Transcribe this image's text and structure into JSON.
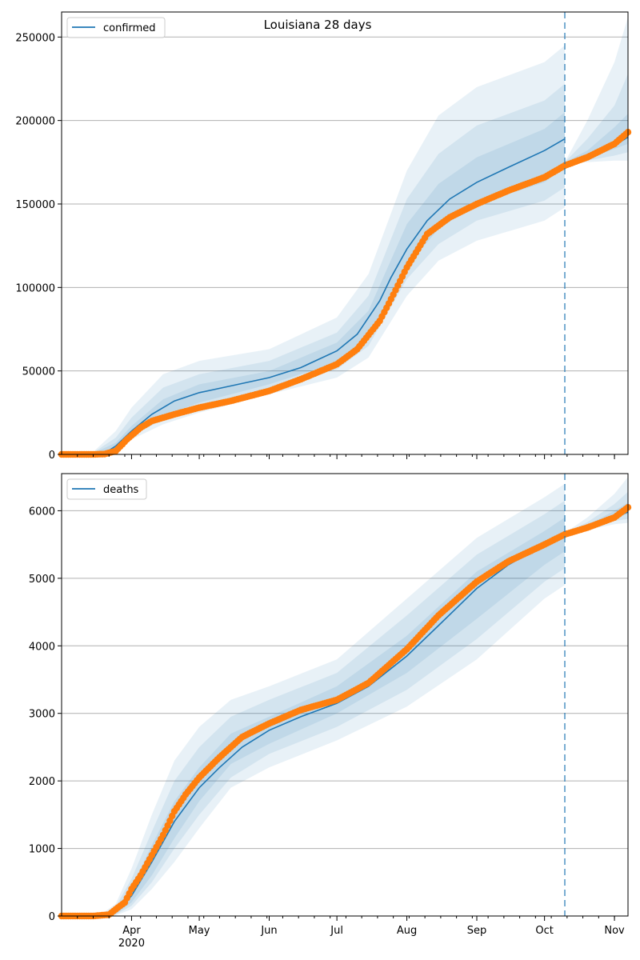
{
  "figure": {
    "title": "Louisiana 28 days"
  },
  "chart_data": [
    {
      "type": "line",
      "legend": [
        "confirmed"
      ],
      "legend_placement": "top-left",
      "title": "Louisiana 28 days",
      "grid": "horizontal",
      "xlim": [
        "2020-03-01",
        "2020-11-07"
      ],
      "ylim": [
        0,
        265000
      ],
      "yticks": [
        0,
        50000,
        100000,
        150000,
        200000,
        250000
      ],
      "ytick_labels": [
        "0",
        "50000",
        "100000",
        "150000",
        "200000",
        "250000"
      ],
      "forecast_start": "2020-10-10",
      "model_median": {
        "x": [
          "2020-03-01",
          "2020-03-10",
          "2020-03-15",
          "2020-03-20",
          "2020-03-25",
          "2020-04-01",
          "2020-04-10",
          "2020-04-20",
          "2020-05-01",
          "2020-05-15",
          "2020-06-01",
          "2020-06-15",
          "2020-07-01",
          "2020-07-10",
          "2020-07-20",
          "2020-07-25",
          "2020-08-01",
          "2020-08-10",
          "2020-08-20",
          "2020-09-01",
          "2020-09-15",
          "2020-10-01",
          "2020-10-10"
        ],
        "y": [
          0,
          0,
          0,
          600,
          5000,
          14000,
          24000,
          32000,
          37000,
          41000,
          46000,
          52000,
          62000,
          72000,
          92000,
          106000,
          123000,
          140000,
          153000,
          163000,
          172000,
          182000,
          189000
        ]
      },
      "observed": {
        "x": [
          "2020-03-01",
          "2020-03-10",
          "2020-03-15",
          "2020-03-20",
          "2020-03-25",
          "2020-03-30",
          "2020-04-05",
          "2020-04-10",
          "2020-04-20",
          "2020-05-01",
          "2020-05-15",
          "2020-06-01",
          "2020-06-15",
          "2020-07-01",
          "2020-07-10",
          "2020-07-20",
          "2020-07-25",
          "2020-08-01",
          "2020-08-10",
          "2020-08-20",
          "2020-09-01",
          "2020-09-15",
          "2020-10-01",
          "2020-10-10",
          "2020-10-20",
          "2020-11-01",
          "2020-11-07"
        ],
        "y": [
          0,
          0,
          0,
          200,
          2000,
          9000,
          16000,
          20000,
          24000,
          28000,
          32000,
          38000,
          45000,
          54000,
          63000,
          80000,
          93000,
          112000,
          132000,
          142000,
          150000,
          158000,
          166000,
          173000,
          178000,
          186000,
          193000
        ]
      },
      "bands": [
        {
          "x": [
            "2020-03-01",
            "2020-03-15",
            "2020-03-25",
            "2020-04-01",
            "2020-04-15",
            "2020-05-01",
            "2020-06-01",
            "2020-07-01",
            "2020-07-15",
            "2020-08-01",
            "2020-08-15",
            "2020-09-01",
            "2020-10-01",
            "2020-10-10"
          ],
          "lower": [
            0,
            0,
            1000,
            9000,
            18000,
            25000,
            36000,
            46000,
            58000,
            95000,
            116000,
            128000,
            140000,
            148000
          ],
          "upper": [
            0,
            1500,
            14000,
            28000,
            48000,
            56000,
            63000,
            82000,
            108000,
            170000,
            203000,
            220000,
            235000,
            245000
          ]
        },
        {
          "x": [
            "2020-03-01",
            "2020-03-15",
            "2020-03-25",
            "2020-04-01",
            "2020-04-15",
            "2020-05-01",
            "2020-06-01",
            "2020-07-01",
            "2020-07-15",
            "2020-08-01",
            "2020-08-15",
            "2020-09-01",
            "2020-10-01",
            "2020-10-10"
          ],
          "lower": [
            0,
            0,
            2000,
            11000,
            21000,
            28000,
            39000,
            51000,
            65000,
            105000,
            126000,
            140000,
            152000,
            160000
          ],
          "upper": [
            0,
            1000,
            10000,
            22000,
            40000,
            48000,
            56000,
            73000,
            95000,
            153000,
            180000,
            197000,
            212000,
            222000
          ]
        },
        {
          "x": [
            "2020-03-01",
            "2020-03-15",
            "2020-03-25",
            "2020-04-01",
            "2020-04-15",
            "2020-05-01",
            "2020-06-01",
            "2020-07-01",
            "2020-07-15",
            "2020-08-01",
            "2020-08-15",
            "2020-09-01",
            "2020-10-01",
            "2020-10-10"
          ],
          "lower": [
            0,
            0,
            3000,
            12500,
            23000,
            31000,
            42000,
            55000,
            70000,
            113000,
            135000,
            150000,
            163000,
            172000
          ],
          "upper": [
            0,
            600,
            7000,
            17000,
            33000,
            42000,
            50000,
            67000,
            86000,
            138000,
            162000,
            178000,
            195000,
            205000
          ]
        },
        {
          "x": [
            "2020-10-10",
            "2020-10-20",
            "2020-11-01",
            "2020-11-07"
          ],
          "lower": [
            174000,
            175000,
            176000,
            176000
          ],
          "upper": [
            175000,
            200000,
            235000,
            262000
          ]
        },
        {
          "x": [
            "2020-10-10",
            "2020-10-20",
            "2020-11-01",
            "2020-11-07"
          ],
          "lower": [
            174000,
            176000,
            179000,
            181000
          ],
          "upper": [
            175000,
            189000,
            209000,
            228000
          ]
        },
        {
          "x": [
            "2020-10-10",
            "2020-10-20",
            "2020-11-01",
            "2020-11-07"
          ],
          "lower": [
            174000,
            177000,
            183000,
            186000
          ],
          "upper": [
            175000,
            182000,
            196000,
            204000
          ]
        }
      ],
      "forecast_median": {
        "x": [
          "2020-10-10",
          "2020-10-20",
          "2020-11-01",
          "2020-11-07"
        ],
        "y": [
          174000,
          178000,
          185000,
          190000
        ]
      }
    },
    {
      "type": "line",
      "legend": [
        "deaths"
      ],
      "legend_placement": "top-left",
      "grid": "horizontal",
      "xlim": [
        "2020-03-01",
        "2020-11-07"
      ],
      "ylim": [
        0,
        6550
      ],
      "yticks": [
        0,
        1000,
        2000,
        3000,
        4000,
        5000,
        6000
      ],
      "ytick_labels": [
        "0",
        "1000",
        "2000",
        "3000",
        "4000",
        "5000",
        "6000"
      ],
      "xticks": [
        "2020-04-01",
        "2020-05-01",
        "2020-06-01",
        "2020-07-01",
        "2020-08-01",
        "2020-09-01",
        "2020-10-01",
        "2020-11-01"
      ],
      "xtick_labels": [
        "Apr",
        "May",
        "Jun",
        "Jul",
        "Aug",
        "Sep",
        "Oct",
        "Nov"
      ],
      "xtick_year_label": "2020",
      "forecast_start": "2020-10-10",
      "model_median": {
        "x": [
          "2020-03-01",
          "2020-03-15",
          "2020-03-22",
          "2020-03-25",
          "2020-04-01",
          "2020-04-10",
          "2020-04-20",
          "2020-05-01",
          "2020-05-10",
          "2020-05-20",
          "2020-06-01",
          "2020-06-15",
          "2020-07-01",
          "2020-07-15",
          "2020-08-01",
          "2020-08-15",
          "2020-09-01",
          "2020-09-15",
          "2020-10-01",
          "2020-10-10"
        ],
        "y": [
          0,
          0,
          20,
          60,
          300,
          800,
          1400,
          1900,
          2200,
          2500,
          2750,
          2950,
          3150,
          3400,
          3850,
          4300,
          4850,
          5200,
          5500,
          5650
        ]
      },
      "observed": {
        "x": [
          "2020-03-01",
          "2020-03-15",
          "2020-03-22",
          "2020-03-25",
          "2020-03-29",
          "2020-04-01",
          "2020-04-05",
          "2020-04-10",
          "2020-04-15",
          "2020-04-20",
          "2020-04-25",
          "2020-05-01",
          "2020-05-10",
          "2020-05-20",
          "2020-06-01",
          "2020-06-15",
          "2020-07-01",
          "2020-07-15",
          "2020-08-01",
          "2020-08-15",
          "2020-09-01",
          "2020-09-15",
          "2020-10-01",
          "2020-10-10",
          "2020-10-20",
          "2020-11-01",
          "2020-11-07"
        ],
        "y": [
          0,
          0,
          20,
          100,
          200,
          400,
          600,
          900,
          1200,
          1550,
          1800,
          2050,
          2350,
          2650,
          2850,
          3050,
          3200,
          3450,
          3950,
          4450,
          4950,
          5250,
          5500,
          5650,
          5750,
          5900,
          6050
        ]
      },
      "bands": [
        {
          "x": [
            "2020-03-01",
            "2020-03-20",
            "2020-03-25",
            "2020-04-01",
            "2020-04-10",
            "2020-04-20",
            "2020-05-01",
            "2020-05-15",
            "2020-06-01",
            "2020-07-01",
            "2020-08-01",
            "2020-09-01",
            "2020-10-01",
            "2020-10-10"
          ],
          "lower": [
            0,
            0,
            10,
            100,
            400,
            800,
            1300,
            1900,
            2200,
            2600,
            3100,
            3800,
            4700,
            4900
          ],
          "upper": [
            0,
            60,
            180,
            700,
            1500,
            2300,
            2800,
            3200,
            3400,
            3800,
            4700,
            5600,
            6200,
            6400
          ]
        },
        {
          "x": [
            "2020-03-01",
            "2020-03-20",
            "2020-03-25",
            "2020-04-01",
            "2020-04-10",
            "2020-04-20",
            "2020-05-01",
            "2020-05-15",
            "2020-06-01",
            "2020-07-01",
            "2020-08-01",
            "2020-09-01",
            "2020-10-01",
            "2020-10-10"
          ],
          "lower": [
            0,
            0,
            20,
            150,
            500,
            1000,
            1500,
            2050,
            2400,
            2800,
            3350,
            4100,
            4950,
            5150
          ],
          "upper": [
            0,
            40,
            140,
            550,
            1250,
            2000,
            2500,
            2950,
            3200,
            3600,
            4450,
            5350,
            5950,
            6150
          ]
        },
        {
          "x": [
            "2020-03-01",
            "2020-03-20",
            "2020-03-25",
            "2020-04-01",
            "2020-04-10",
            "2020-04-20",
            "2020-05-01",
            "2020-05-15",
            "2020-06-01",
            "2020-07-01",
            "2020-08-01",
            "2020-09-01",
            "2020-10-01",
            "2020-10-10"
          ],
          "lower": [
            0,
            0,
            30,
            200,
            600,
            1150,
            1700,
            2250,
            2550,
            3000,
            3600,
            4400,
            5200,
            5400
          ],
          "upper": [
            0,
            30,
            110,
            420,
            1050,
            1700,
            2200,
            2700,
            2950,
            3400,
            4150,
            5100,
            5700,
            5900
          ]
        },
        {
          "x": [
            "2020-10-10",
            "2020-10-20",
            "2020-11-01",
            "2020-11-07"
          ],
          "lower": [
            5650,
            5720,
            5800,
            5820
          ],
          "upper": [
            5670,
            5900,
            6250,
            6500
          ]
        },
        {
          "x": [
            "2020-10-10",
            "2020-10-20",
            "2020-11-01",
            "2020-11-07"
          ],
          "lower": [
            5650,
            5740,
            5850,
            5880
          ],
          "upper": [
            5670,
            5830,
            6100,
            6280
          ]
        },
        {
          "x": [
            "2020-10-10",
            "2020-10-20",
            "2020-11-01",
            "2020-11-07"
          ],
          "lower": [
            5650,
            5760,
            5900,
            5950
          ],
          "upper": [
            5670,
            5790,
            6000,
            6120
          ]
        }
      ],
      "forecast_median": {
        "x": [
          "2020-10-10",
          "2020-10-20",
          "2020-11-01",
          "2020-11-07"
        ],
        "y": [
          5650,
          5760,
          5900,
          5980
        ]
      }
    }
  ],
  "colors": {
    "median_line": "#1f77b4",
    "observed_dots": "#ff7f0e",
    "band_fill": "#1f77b4",
    "forecast_line": "#1f77b4",
    "grid": "#b0b0b0"
  }
}
